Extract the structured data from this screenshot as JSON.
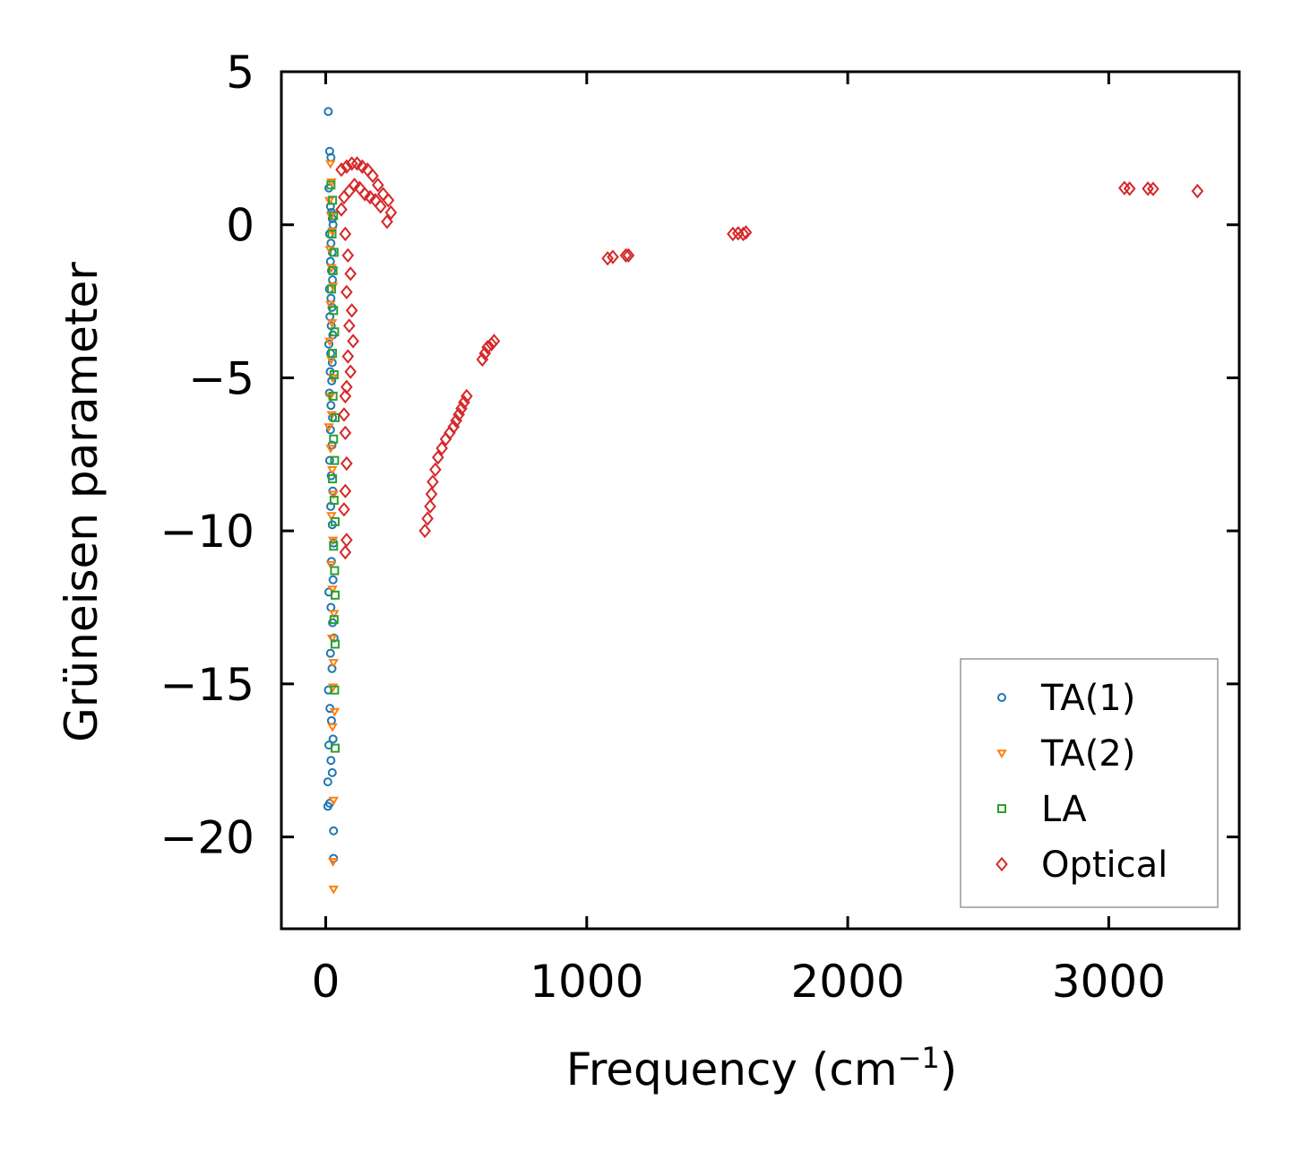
{
  "chart_data": {
    "type": "scatter",
    "title": "",
    "xlabel": "Frequency (cm",
    "xlabel_sup": "−1",
    "xlabel_close": ")",
    "ylabel": "Grüneisen parameter",
    "xlim": [
      -170,
      3500
    ],
    "ylim": [
      -23,
      5
    ],
    "xticks": [
      0,
      1000,
      2000,
      3000
    ],
    "xtick_labels": [
      "0",
      "1000",
      "2000",
      "3000"
    ],
    "yticks": [
      5,
      0,
      -5,
      -10,
      -15,
      -20
    ],
    "ytick_labels": [
      "5",
      "0",
      "−5",
      "−10",
      "−15",
      "−20"
    ],
    "legend_position": "lower right",
    "series": [
      {
        "name": "TA(1)",
        "marker": "circle",
        "color": "#1f77b4",
        "points": [
          [
            10,
            3.7
          ],
          [
            15,
            2.4
          ],
          [
            20,
            2.2
          ],
          [
            12,
            1.2
          ],
          [
            18,
            0.6
          ],
          [
            22,
            0.4
          ],
          [
            25,
            0.2
          ],
          [
            28,
            0.0
          ],
          [
            15,
            -0.3
          ],
          [
            20,
            -0.6
          ],
          [
            25,
            -0.9
          ],
          [
            18,
            -1.2
          ],
          [
            22,
            -1.5
          ],
          [
            26,
            -1.8
          ],
          [
            14,
            -2.1
          ],
          [
            20,
            -2.4
          ],
          [
            24,
            -2.7
          ],
          [
            16,
            -3.0
          ],
          [
            21,
            -3.3
          ],
          [
            27,
            -3.6
          ],
          [
            12,
            -3.9
          ],
          [
            19,
            -4.2
          ],
          [
            25,
            -4.5
          ],
          [
            17,
            -4.8
          ],
          [
            23,
            -5.1
          ],
          [
            14,
            -5.5
          ],
          [
            20,
            -5.9
          ],
          [
            26,
            -6.3
          ],
          [
            18,
            -6.7
          ],
          [
            24,
            -7.2
          ],
          [
            15,
            -7.7
          ],
          [
            21,
            -8.2
          ],
          [
            27,
            -8.7
          ],
          [
            19,
            -9.2
          ],
          [
            25,
            -9.8
          ],
          [
            30,
            -10.4
          ],
          [
            22,
            -11.0
          ],
          [
            28,
            -11.6
          ],
          [
            12,
            -12.0
          ],
          [
            20,
            -12.5
          ],
          [
            26,
            -13.0
          ],
          [
            32,
            -13.5
          ],
          [
            18,
            -14.0
          ],
          [
            24,
            -14.5
          ],
          [
            10,
            -15.2
          ],
          [
            16,
            -15.8
          ],
          [
            22,
            -16.2
          ],
          [
            28,
            -16.8
          ],
          [
            12,
            -17.0
          ],
          [
            20,
            -17.5
          ],
          [
            25,
            -17.9
          ],
          [
            8,
            -18.2
          ],
          [
            15,
            -18.9
          ],
          [
            8,
            -19.0
          ],
          [
            30,
            -19.8
          ],
          [
            30,
            -20.7
          ]
        ]
      },
      {
        "name": "TA(2)",
        "marker": "triangle-down",
        "color": "#ff7f0e",
        "points": [
          [
            18,
            2.0
          ],
          [
            22,
            1.4
          ],
          [
            14,
            0.8
          ],
          [
            20,
            0.3
          ],
          [
            25,
            -0.2
          ],
          [
            16,
            -0.8
          ],
          [
            22,
            -1.4
          ],
          [
            28,
            -2.0
          ],
          [
            18,
            -2.6
          ],
          [
            24,
            -3.2
          ],
          [
            15,
            -3.8
          ],
          [
            21,
            -4.4
          ],
          [
            27,
            -5.0
          ],
          [
            17,
            -5.6
          ],
          [
            23,
            -6.2
          ],
          [
            12,
            -6.6
          ],
          [
            19,
            -7.3
          ],
          [
            25,
            -8.0
          ],
          [
            30,
            -8.8
          ],
          [
            22,
            -9.5
          ],
          [
            28,
            -10.3
          ],
          [
            20,
            -11.1
          ],
          [
            26,
            -11.9
          ],
          [
            32,
            -12.7
          ],
          [
            24,
            -13.5
          ],
          [
            30,
            -14.3
          ],
          [
            28,
            -15.1
          ],
          [
            34,
            -15.9
          ],
          [
            26,
            -16.4
          ],
          [
            30,
            -18.8
          ],
          [
            28,
            -20.8
          ],
          [
            30,
            -21.7
          ]
        ]
      },
      {
        "name": "LA",
        "marker": "square",
        "color": "#2ca02c",
        "points": [
          [
            20,
            1.3
          ],
          [
            26,
            0.8
          ],
          [
            30,
            0.3
          ],
          [
            24,
            -0.3
          ],
          [
            32,
            -0.9
          ],
          [
            28,
            -1.5
          ],
          [
            22,
            -2.1
          ],
          [
            30,
            -2.8
          ],
          [
            34,
            -3.5
          ],
          [
            26,
            -4.2
          ],
          [
            32,
            -4.9
          ],
          [
            28,
            -5.6
          ],
          [
            36,
            -6.3
          ],
          [
            30,
            -7.0
          ],
          [
            34,
            -7.7
          ],
          [
            26,
            -8.3
          ],
          [
            32,
            -9.0
          ],
          [
            36,
            -9.7
          ],
          [
            30,
            -10.5
          ],
          [
            34,
            -11.3
          ],
          [
            36,
            -12.1
          ],
          [
            32,
            -12.9
          ],
          [
            36,
            -13.7
          ],
          [
            34,
            -15.2
          ],
          [
            36,
            -17.1
          ]
        ]
      },
      {
        "name": "Optical",
        "marker": "diamond",
        "color": "#d62728",
        "points": [
          [
            60,
            1.8
          ],
          [
            80,
            1.9
          ],
          [
            100,
            2.0
          ],
          [
            120,
            2.0
          ],
          [
            140,
            1.9
          ],
          [
            160,
            1.8
          ],
          [
            180,
            1.6
          ],
          [
            200,
            1.3
          ],
          [
            220,
            1.0
          ],
          [
            240,
            0.8
          ],
          [
            250,
            0.4
          ],
          [
            235,
            0.1
          ],
          [
            70,
            0.9
          ],
          [
            90,
            1.1
          ],
          [
            110,
            1.3
          ],
          [
            130,
            1.2
          ],
          [
            150,
            1.0
          ],
          [
            170,
            0.9
          ],
          [
            190,
            0.8
          ],
          [
            210,
            0.6
          ],
          [
            60,
            0.5
          ],
          [
            75,
            -0.3
          ],
          [
            85,
            -1.0
          ],
          [
            95,
            -1.6
          ],
          [
            80,
            -2.2
          ],
          [
            100,
            -2.8
          ],
          [
            90,
            -3.3
          ],
          [
            105,
            -3.8
          ],
          [
            85,
            -4.3
          ],
          [
            95,
            -4.8
          ],
          [
            80,
            -5.3
          ],
          [
            75,
            -5.6
          ],
          [
            70,
            -6.2
          ],
          [
            75,
            -6.8
          ],
          [
            80,
            -7.8
          ],
          [
            75,
            -8.7
          ],
          [
            70,
            -9.3
          ],
          [
            80,
            -10.3
          ],
          [
            75,
            -10.7
          ],
          [
            380,
            -10.0
          ],
          [
            390,
            -9.6
          ],
          [
            400,
            -9.2
          ],
          [
            405,
            -8.8
          ],
          [
            410,
            -8.4
          ],
          [
            420,
            -8.0
          ],
          [
            430,
            -7.6
          ],
          [
            445,
            -7.3
          ],
          [
            460,
            -7.0
          ],
          [
            475,
            -6.8
          ],
          [
            490,
            -6.6
          ],
          [
            500,
            -6.4
          ],
          [
            510,
            -6.2
          ],
          [
            520,
            -6.0
          ],
          [
            530,
            -5.8
          ],
          [
            540,
            -5.6
          ],
          [
            600,
            -4.4
          ],
          [
            610,
            -4.2
          ],
          [
            620,
            -4.0
          ],
          [
            635,
            -3.9
          ],
          [
            645,
            -3.8
          ],
          [
            1080,
            -1.1
          ],
          [
            1100,
            -1.05
          ],
          [
            1150,
            -1.0
          ],
          [
            1160,
            -1.0
          ],
          [
            1560,
            -0.3
          ],
          [
            1580,
            -0.28
          ],
          [
            1600,
            -0.3
          ],
          [
            1610,
            -0.25
          ],
          [
            3060,
            1.2
          ],
          [
            3080,
            1.18
          ],
          [
            3150,
            1.18
          ],
          [
            3170,
            1.17
          ],
          [
            3340,
            1.1
          ]
        ]
      }
    ]
  }
}
